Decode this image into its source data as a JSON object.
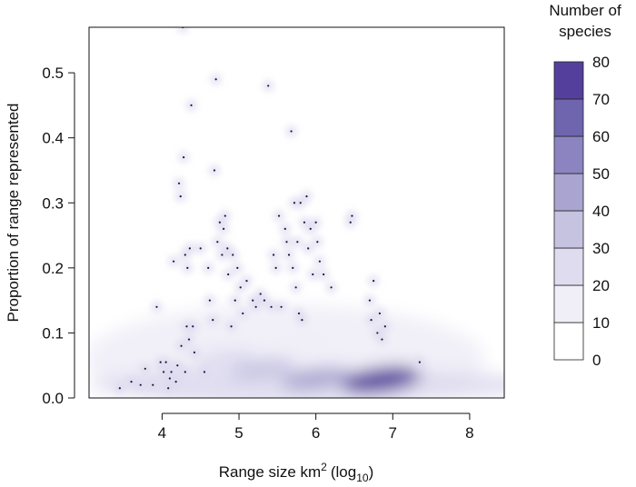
{
  "chart_data": {
    "type": "heatmap",
    "title": "",
    "xlabel": "Range size km",
    "xlabel_sup": "2",
    "xlabel_suffix_pre": "(log",
    "xlabel_sub": "10",
    "xlabel_suffix_post": ")",
    "ylabel": "Proportion of range represented",
    "xlim": [
      3.05,
      8.45
    ],
    "ylim": [
      0.0,
      0.57
    ],
    "x_ticks": [
      4,
      5,
      6,
      7,
      8
    ],
    "x_tick_labels": [
      "4",
      "5",
      "6",
      "7",
      "8"
    ],
    "y_ticks": [
      0.0,
      0.1,
      0.2,
      0.3,
      0.4,
      0.5
    ],
    "y_tick_labels": [
      "0.0",
      "0.1",
      "0.2",
      "0.3",
      "0.4",
      "0.5"
    ],
    "grid": false,
    "legend": {
      "title_lines": [
        "Number of",
        "species"
      ],
      "placement": "right",
      "breaks": [
        0,
        10,
        20,
        30,
        40,
        50,
        60,
        70,
        80
      ],
      "break_labels": [
        "0",
        "10",
        "20",
        "30",
        "40",
        "50",
        "60",
        "70",
        "80"
      ],
      "colors": [
        "#ffffff",
        "#f0eef7",
        "#dedcee",
        "#c6c3e1",
        "#a9a4d0",
        "#8b84c1",
        "#6f64ae",
        "#54409c"
      ]
    },
    "density_hotspots": [
      {
        "x": 6.85,
        "y": 0.028,
        "count": 75
      },
      {
        "x": 6.0,
        "y": 0.03,
        "count": 45
      },
      {
        "x": 5.3,
        "y": 0.045,
        "count": 30
      },
      {
        "x": 4.8,
        "y": 0.06,
        "count": 22
      },
      {
        "x": 5.8,
        "y": 0.08,
        "count": 18
      }
    ],
    "outlier_points": [
      [
        3.45,
        0.015
      ],
      [
        3.6,
        0.025
      ],
      [
        3.72,
        0.02
      ],
      [
        3.78,
        0.045
      ],
      [
        3.88,
        0.02
      ],
      [
        3.93,
        0.14
      ],
      [
        3.98,
        0.055
      ],
      [
        4.02,
        0.04
      ],
      [
        4.05,
        0.055
      ],
      [
        4.08,
        0.015
      ],
      [
        4.1,
        0.03
      ],
      [
        4.12,
        0.04
      ],
      [
        4.15,
        0.21
      ],
      [
        4.18,
        0.025
      ],
      [
        4.2,
        0.05
      ],
      [
        4.22,
        0.33
      ],
      [
        4.24,
        0.31
      ],
      [
        4.25,
        0.08
      ],
      [
        4.27,
        0.57
      ],
      [
        4.28,
        0.37
      ],
      [
        4.3,
        0.22
      ],
      [
        4.3,
        0.04
      ],
      [
        4.32,
        0.11
      ],
      [
        4.33,
        0.2
      ],
      [
        4.35,
        0.09
      ],
      [
        4.36,
        0.23
      ],
      [
        4.38,
        0.45
      ],
      [
        4.4,
        0.11
      ],
      [
        4.42,
        0.07
      ],
      [
        4.5,
        0.23
      ],
      [
        4.55,
        0.04
      ],
      [
        4.6,
        0.2
      ],
      [
        4.62,
        0.15
      ],
      [
        4.66,
        0.12
      ],
      [
        4.68,
        0.35
      ],
      [
        4.7,
        0.49
      ],
      [
        4.72,
        0.24
      ],
      [
        4.75,
        0.27
      ],
      [
        4.78,
        0.22
      ],
      [
        4.8,
        0.26
      ],
      [
        4.82,
        0.28
      ],
      [
        4.85,
        0.23
      ],
      [
        4.86,
        0.19
      ],
      [
        4.9,
        0.11
      ],
      [
        4.92,
        0.22
      ],
      [
        4.95,
        0.15
      ],
      [
        4.98,
        0.2
      ],
      [
        5.02,
        0.17
      ],
      [
        5.05,
        0.13
      ],
      [
        5.1,
        0.18
      ],
      [
        5.18,
        0.15
      ],
      [
        5.22,
        0.14
      ],
      [
        5.28,
        0.16
      ],
      [
        5.33,
        0.15
      ],
      [
        5.38,
        0.48
      ],
      [
        5.42,
        0.14
      ],
      [
        5.45,
        0.22
      ],
      [
        5.48,
        0.2
      ],
      [
        5.52,
        0.28
      ],
      [
        5.55,
        0.14
      ],
      [
        5.6,
        0.26
      ],
      [
        5.62,
        0.24
      ],
      [
        5.65,
        0.22
      ],
      [
        5.68,
        0.41
      ],
      [
        5.7,
        0.2
      ],
      [
        5.72,
        0.3
      ],
      [
        5.74,
        0.17
      ],
      [
        5.76,
        0.24
      ],
      [
        5.78,
        0.13
      ],
      [
        5.8,
        0.3
      ],
      [
        5.82,
        0.12
      ],
      [
        5.85,
        0.27
      ],
      [
        5.88,
        0.31
      ],
      [
        5.9,
        0.23
      ],
      [
        5.93,
        0.26
      ],
      [
        5.96,
        0.19
      ],
      [
        6.0,
        0.27
      ],
      [
        6.02,
        0.24
      ],
      [
        6.05,
        0.21
      ],
      [
        6.1,
        0.19
      ],
      [
        6.2,
        0.17
      ],
      [
        6.45,
        0.27
      ],
      [
        6.47,
        0.28
      ],
      [
        6.7,
        0.15
      ],
      [
        6.72,
        0.12
      ],
      [
        6.75,
        0.18
      ],
      [
        6.8,
        0.1
      ],
      [
        6.83,
        0.13
      ],
      [
        6.86,
        0.09
      ],
      [
        6.9,
        0.11
      ],
      [
        7.35,
        0.055
      ]
    ]
  }
}
